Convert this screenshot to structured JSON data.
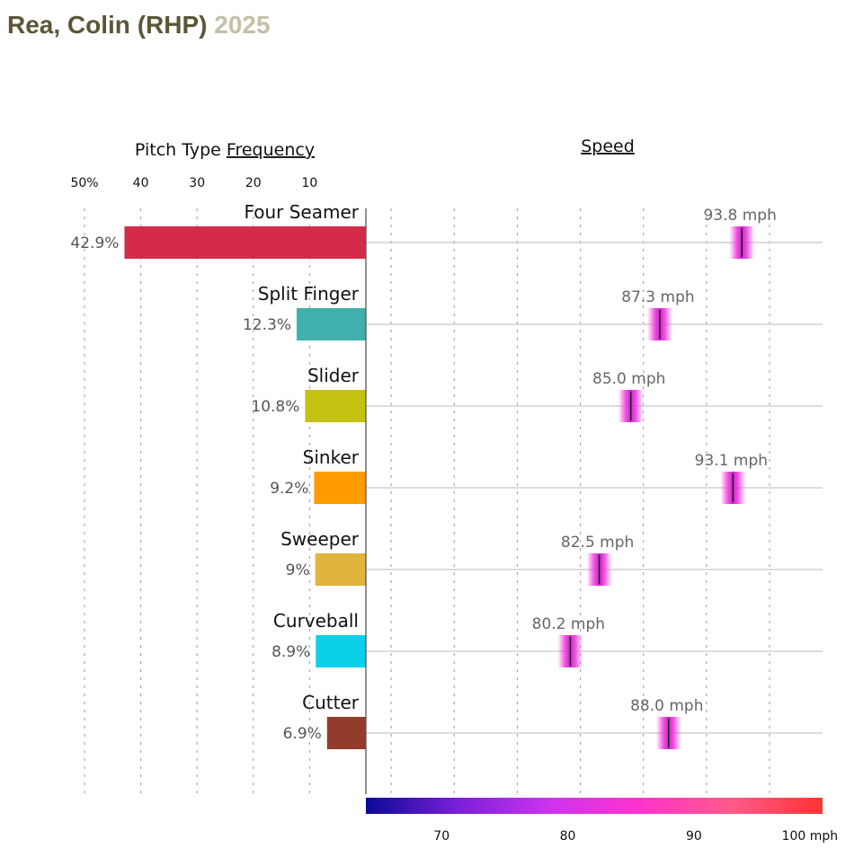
{
  "player": {
    "name": "Rea, Colin (RHP)",
    "season": "2025"
  },
  "chart_data": [
    {
      "type": "bar",
      "title": "Pitch Type Frequency",
      "title_prefix": "Pitch Type ",
      "title_underlined": "Frequency",
      "orientation": "horizontal-leftward",
      "xlim": [
        0,
        50
      ],
      "tick_labels": [
        "50%",
        "40",
        "30",
        "20",
        "10"
      ],
      "tick_values": [
        50,
        40,
        30,
        20,
        10
      ],
      "grid": "dashed vertical",
      "categories": [
        "Four Seamer",
        "Split Finger",
        "Slider",
        "Sinker",
        "Sweeper",
        "Curveball",
        "Cutter"
      ],
      "values": [
        42.9,
        12.3,
        10.8,
        9.2,
        9,
        8.9,
        6.9
      ],
      "value_labels": [
        "42.9%",
        "12.3%",
        "10.8%",
        "9.2%",
        "9%",
        "8.9%",
        "6.9%"
      ],
      "colors": [
        "#d42b49",
        "#3fb0ab",
        "#c3c213",
        "#ff9c00",
        "#e1b43c",
        "#0cd0ea",
        "#923d2c"
      ]
    },
    {
      "type": "scatter",
      "title": "Speed",
      "categories": [
        "Four Seamer",
        "Split Finger",
        "Slider",
        "Sinker",
        "Sweeper",
        "Curveball",
        "Cutter"
      ],
      "values": [
        93.8,
        87.3,
        85.0,
        93.1,
        82.5,
        80.2,
        88.0
      ],
      "value_labels": [
        "93.8 mph",
        "87.3 mph",
        "85.0 mph",
        "93.1 mph",
        "82.5 mph",
        "80.2 mph",
        "88.0 mph"
      ],
      "xlim": [
        64,
        100.2
      ],
      "grid_values": [
        66,
        71,
        76,
        81,
        86,
        91,
        96
      ],
      "colorbar": {
        "tick_values": [
          70,
          80,
          90,
          100
        ],
        "tick_labels": [
          "70",
          "80",
          "90",
          "100 mph"
        ],
        "colors": [
          "#0a0a96",
          "#7a1fd8",
          "#cc33ee",
          "#ff33cc",
          "#ff5a8a",
          "#ff3333"
        ]
      }
    }
  ]
}
